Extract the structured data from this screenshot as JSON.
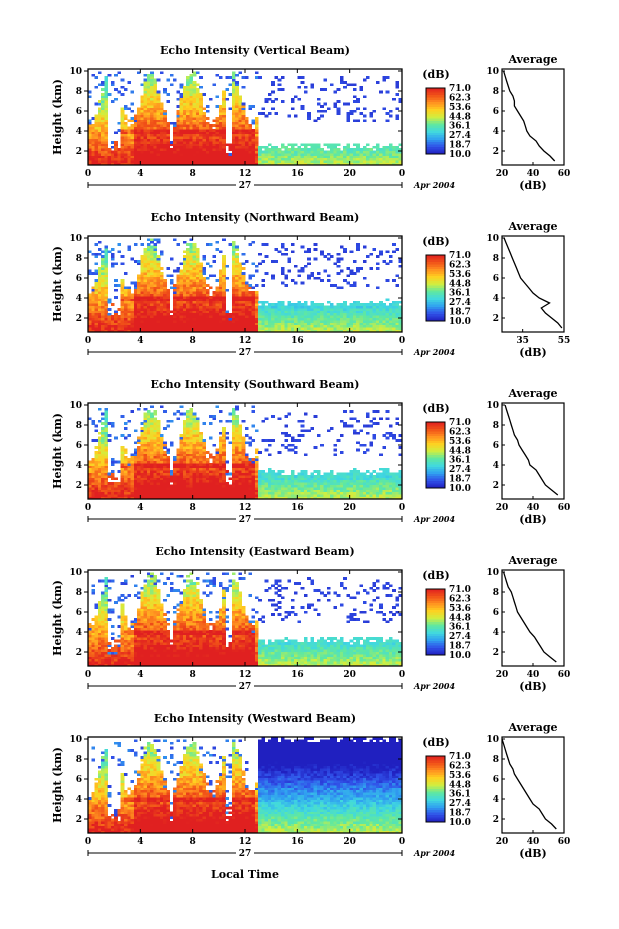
{
  "figure": {
    "bottom_label": "Local Time",
    "colorbar_unit": "(dB)",
    "colorbar_ticks": [
      "71.0",
      "62.3",
      "53.6",
      "44.8",
      "36.1",
      "27.4",
      "18.7",
      "10.0"
    ],
    "colorscale": [
      "#2020c0",
      "#3050e8",
      "#30a0f0",
      "#40d8e0",
      "#60e8a0",
      "#d0ee40",
      "#ffd020",
      "#ff9020",
      "#f05018",
      "#e02020"
    ],
    "date_label": "27",
    "month_label": "Apr 2004",
    "avg_title": "Average",
    "avg_xlabel": "(dB)"
  },
  "chart_data": [
    {
      "type": "heatmap",
      "title": "Echo Intensity (Vertical Beam)",
      "ylabel": "Height (km)",
      "xlim": [
        0,
        24
      ],
      "ylim": [
        0.6,
        10.2
      ],
      "x_ticks": [
        "0",
        "4",
        "8",
        "12",
        "16",
        "20",
        "0"
      ],
      "y_ticks": [
        "2",
        "4",
        "6",
        "8",
        "10"
      ],
      "clim": [
        10.0,
        71.0
      ],
      "cloud_top_km_day": 10.0,
      "cloud_top_km_evening": 2.5,
      "average_profile": {
        "xlim": [
          20,
          60
        ],
        "x_ticks": [
          "20",
          "40",
          "60"
        ],
        "y_ticks": [
          "2",
          "4",
          "6",
          "8",
          "10"
        ],
        "height_km": [
          1,
          1.5,
          2,
          2.5,
          3,
          3.5,
          4,
          4.5,
          5,
          5.5,
          6,
          6.5,
          7,
          7.5,
          8,
          8.5,
          9,
          9.5,
          10
        ],
        "db": [
          54,
          51,
          47,
          44,
          42,
          38,
          36,
          35,
          34,
          32,
          30,
          28,
          28,
          27,
          25,
          24,
          23,
          22,
          21
        ]
      }
    },
    {
      "type": "heatmap",
      "title": "Echo Intensity (Northward Beam)",
      "ylabel": "Height (km)",
      "xlim": [
        0,
        24
      ],
      "ylim": [
        0.6,
        10.2
      ],
      "x_ticks": [
        "0",
        "4",
        "8",
        "12",
        "16",
        "20",
        "0"
      ],
      "y_ticks": [
        "2",
        "4",
        "6",
        "8",
        "10"
      ],
      "clim": [
        10.0,
        71.0
      ],
      "cloud_top_km_day": 10.0,
      "cloud_top_km_evening": 3.5,
      "average_profile": {
        "xlim": [
          25,
          55
        ],
        "x_ticks": [
          "35",
          "55"
        ],
        "y_ticks": [
          "2",
          "4",
          "6",
          "8",
          "10"
        ],
        "height_km": [
          1,
          1.5,
          2,
          2.5,
          3,
          3.5,
          4,
          4.5,
          5,
          5.5,
          6,
          6.5,
          7,
          7.5,
          8,
          8.5,
          9,
          9.5,
          10
        ],
        "db": [
          54,
          52,
          49,
          46,
          44,
          48,
          43,
          40,
          38,
          36,
          34,
          33,
          32,
          31,
          30,
          29,
          28,
          27,
          26
        ]
      }
    },
    {
      "type": "heatmap",
      "title": "Echo Intensity (Southward Beam)",
      "ylabel": "Height (km)",
      "xlim": [
        0,
        24
      ],
      "ylim": [
        0.6,
        10.2
      ],
      "x_ticks": [
        "0",
        "4",
        "8",
        "12",
        "16",
        "20",
        "0"
      ],
      "y_ticks": [
        "2",
        "4",
        "6",
        "8",
        "10"
      ],
      "clim": [
        10.0,
        71.0
      ],
      "cloud_top_km_day": 10.0,
      "cloud_top_km_evening": 3.3,
      "average_profile": {
        "xlim": [
          20,
          60
        ],
        "x_ticks": [
          "20",
          "40",
          "60"
        ],
        "y_ticks": [
          "2",
          "4",
          "6",
          "8",
          "10"
        ],
        "height_km": [
          1,
          1.5,
          2,
          2.5,
          3,
          3.5,
          4,
          4.5,
          5,
          5.5,
          6,
          6.5,
          7,
          7.5,
          8,
          8.5,
          9,
          9.5,
          10
        ],
        "db": [
          56,
          52,
          48,
          46,
          44,
          42,
          38,
          37,
          35,
          33,
          31,
          30,
          28,
          27,
          26,
          25,
          24,
          23,
          22
        ]
      }
    },
    {
      "type": "heatmap",
      "title": "Echo Intensity (Eastward Beam)",
      "ylabel": "Height (km)",
      "xlim": [
        0,
        24
      ],
      "ylim": [
        0.6,
        10.2
      ],
      "x_ticks": [
        "0",
        "4",
        "8",
        "12",
        "16",
        "20",
        "0"
      ],
      "y_ticks": [
        "2",
        "4",
        "6",
        "8",
        "10"
      ],
      "clim": [
        10.0,
        71.0
      ],
      "cloud_top_km_day": 10.0,
      "cloud_top_km_evening": 3.2,
      "average_profile": {
        "xlim": [
          20,
          60
        ],
        "x_ticks": [
          "20",
          "40",
          "60"
        ],
        "y_ticks": [
          "2",
          "4",
          "6",
          "8",
          "10"
        ],
        "height_km": [
          1,
          1.5,
          2,
          2.5,
          3,
          3.5,
          4,
          4.5,
          5,
          5.5,
          6,
          6.5,
          7,
          7.5,
          8,
          8.5,
          9,
          9.5,
          10
        ],
        "db": [
          55,
          51,
          47,
          45,
          43,
          41,
          38,
          36,
          34,
          32,
          30,
          29,
          28,
          27,
          26,
          24,
          23,
          22,
          21
        ]
      }
    },
    {
      "type": "heatmap",
      "title": "Echo Intensity (Westward Beam)",
      "ylabel": "Height (km)",
      "xlim": [
        0,
        24
      ],
      "ylim": [
        0.6,
        10.2
      ],
      "x_ticks": [
        "0",
        "4",
        "8",
        "12",
        "16",
        "20",
        "0"
      ],
      "y_ticks": [
        "2",
        "4",
        "6",
        "8",
        "10"
      ],
      "clim": [
        10.0,
        71.0
      ],
      "cloud_top_km_day": 10.0,
      "cloud_top_km_evening": 10.0,
      "average_profile": {
        "xlim": [
          20,
          60
        ],
        "x_ticks": [
          "20",
          "40",
          "60"
        ],
        "y_ticks": [
          "2",
          "4",
          "6",
          "8",
          "10"
        ],
        "height_km": [
          1,
          1.5,
          2,
          2.5,
          3,
          3.5,
          4,
          4.5,
          5,
          5.5,
          6,
          6.5,
          7,
          7.5,
          8,
          8.5,
          9,
          9.5,
          10
        ],
        "db": [
          55,
          52,
          48,
          46,
          44,
          40,
          38,
          36,
          34,
          32,
          30,
          28,
          27,
          25,
          24,
          23,
          22,
          21,
          20
        ]
      }
    }
  ]
}
